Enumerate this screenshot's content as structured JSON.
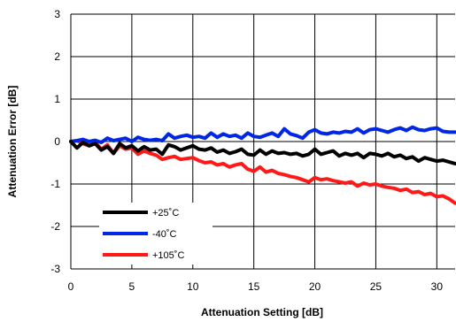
{
  "chart_data": {
    "type": "line",
    "xlabel": "Attenuation Setting [dB]",
    "ylabel": "Attenuation Error [dB]",
    "xlim": [
      0,
      31.5
    ],
    "ylim": [
      -3,
      3
    ],
    "xticks": [
      0,
      5,
      10,
      15,
      20,
      25,
      30
    ],
    "yticks": [
      -3,
      -2,
      -1,
      0,
      1,
      2,
      3
    ],
    "grid": true,
    "legend_position": "lower-left",
    "x": [
      0,
      0.5,
      1,
      1.5,
      2,
      2.5,
      3,
      3.5,
      4,
      4.5,
      5,
      5.5,
      6,
      6.5,
      7,
      7.5,
      8,
      8.5,
      9,
      9.5,
      10,
      10.5,
      11,
      11.5,
      12,
      12.5,
      13,
      13.5,
      14,
      14.5,
      15,
      15.5,
      16,
      16.5,
      17,
      17.5,
      18,
      18.5,
      19,
      19.5,
      20,
      20.5,
      21,
      21.5,
      22,
      22.5,
      23,
      23.5,
      24,
      24.5,
      25,
      25.5,
      26,
      26.5,
      27,
      27.5,
      28,
      28.5,
      29,
      29.5,
      30,
      30.5,
      31,
      31.5
    ],
    "series": [
      {
        "name": "+25˚C",
        "color": "#000000",
        "values": [
          0,
          -0.15,
          -0.02,
          -0.1,
          -0.05,
          -0.2,
          -0.12,
          -0.28,
          -0.05,
          -0.15,
          -0.1,
          -0.22,
          -0.12,
          -0.2,
          -0.18,
          -0.3,
          -0.08,
          -0.12,
          -0.2,
          -0.15,
          -0.1,
          -0.18,
          -0.2,
          -0.15,
          -0.25,
          -0.2,
          -0.28,
          -0.24,
          -0.18,
          -0.3,
          -0.32,
          -0.2,
          -0.3,
          -0.22,
          -0.28,
          -0.26,
          -0.3,
          -0.28,
          -0.34,
          -0.3,
          -0.18,
          -0.3,
          -0.26,
          -0.22,
          -0.34,
          -0.28,
          -0.32,
          -0.28,
          -0.38,
          -0.28,
          -0.3,
          -0.34,
          -0.28,
          -0.36,
          -0.32,
          -0.4,
          -0.36,
          -0.46,
          -0.38,
          -0.42,
          -0.46,
          -0.44,
          -0.48,
          -0.52
        ]
      },
      {
        "name": "-40˚C",
        "color": "#0026e6",
        "values": [
          0,
          0.02,
          0.05,
          0,
          0.03,
          -0.02,
          0.08,
          0.02,
          0.05,
          0.08,
          0,
          0.1,
          0.05,
          0.03,
          0.05,
          0.02,
          0.18,
          0.08,
          0.12,
          0.15,
          0.1,
          0.12,
          0.08,
          0.2,
          0.1,
          0.18,
          0.12,
          0.15,
          0.08,
          0.2,
          0.12,
          0.1,
          0.15,
          0.2,
          0.12,
          0.3,
          0.18,
          0.14,
          0.08,
          0.22,
          0.28,
          0.2,
          0.18,
          0.22,
          0.2,
          0.24,
          0.22,
          0.3,
          0.2,
          0.28,
          0.3,
          0.26,
          0.22,
          0.28,
          0.32,
          0.26,
          0.34,
          0.28,
          0.26,
          0.3,
          0.32,
          0.24,
          0.22,
          0.22
        ]
      },
      {
        "name": "+105˚C",
        "color": "#ff1a1a",
        "values": [
          0,
          0.02,
          -0.05,
          -0.1,
          -0.02,
          -0.18,
          -0.08,
          -0.28,
          -0.1,
          -0.18,
          -0.15,
          -0.3,
          -0.22,
          -0.28,
          -0.32,
          -0.42,
          -0.38,
          -0.35,
          -0.42,
          -0.4,
          -0.38,
          -0.45,
          -0.5,
          -0.48,
          -0.55,
          -0.52,
          -0.6,
          -0.55,
          -0.52,
          -0.65,
          -0.7,
          -0.6,
          -0.72,
          -0.68,
          -0.75,
          -0.78,
          -0.82,
          -0.85,
          -0.9,
          -0.95,
          -0.85,
          -0.9,
          -0.88,
          -0.92,
          -0.95,
          -0.98,
          -0.95,
          -1.05,
          -0.98,
          -1.02,
          -1.0,
          -1.05,
          -1.08,
          -1.1,
          -1.15,
          -1.12,
          -1.2,
          -1.18,
          -1.25,
          -1.22,
          -1.3,
          -1.28,
          -1.35,
          -1.45
        ]
      }
    ]
  }
}
